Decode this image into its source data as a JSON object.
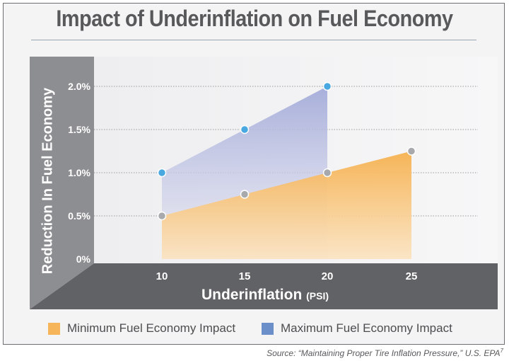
{
  "chart_data": {
    "type": "area",
    "title": "Impact of Underinflation on Fuel Economy",
    "ylabel": "Reduction In Fuel Economy",
    "xlabel": "Underinflation",
    "xlabel_unit": "(PSI)",
    "yticks": [
      "0%",
      "0.5%",
      "1.0%",
      "1.5%",
      "2.0%"
    ],
    "ytick_values": [
      0,
      0.5,
      1.0,
      1.5,
      2.0
    ],
    "ylim": [
      0,
      2.4
    ],
    "xticks": [
      "10",
      "15",
      "20",
      "25"
    ],
    "series": [
      {
        "name": "Minimum Fuel Economy Impact",
        "x": [
          10,
          15,
          20,
          25
        ],
        "values": [
          0.5,
          0.75,
          1.0,
          1.25
        ],
        "color": "#f7b55a"
      },
      {
        "name": "Maximum Fuel Economy Impact",
        "x": [
          10,
          15,
          20
        ],
        "values": [
          1.0,
          1.5,
          2.0
        ],
        "color": "#6a8fc9"
      }
    ],
    "grid": true,
    "legend_position": "bottom"
  },
  "source": "Source: “Maintaining Proper Tire Inflation Pressure,” U.S. EPA",
  "source_sup": "7"
}
